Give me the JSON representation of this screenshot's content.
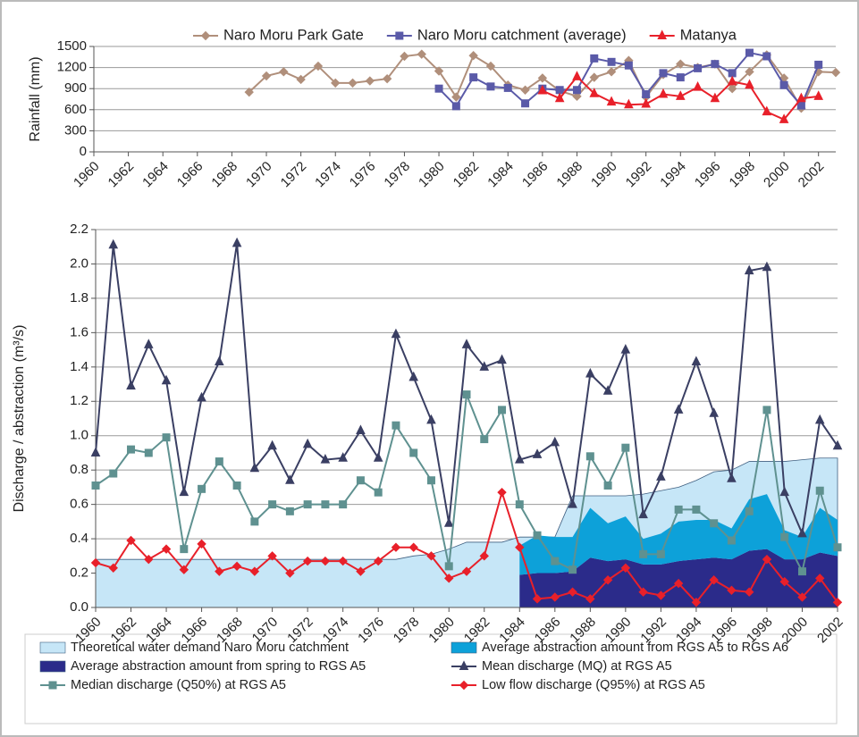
{
  "chart_data": [
    {
      "type": "line",
      "legend": "top",
      "grid": true,
      "y_label": "Rainfall (mm)",
      "x": [
        1969,
        1970,
        1971,
        1972,
        1973,
        1974,
        1975,
        1976,
        1977,
        1978,
        1979,
        1980,
        1981,
        1982,
        1983,
        1984,
        1985,
        1986,
        1987,
        1988,
        1989,
        1990,
        1991,
        1992,
        1993,
        1994,
        1995,
        1996,
        1997,
        1998,
        1999,
        2000,
        2001,
        2002,
        2003
      ],
      "xlim": [
        1960,
        2003
      ],
      "xticks": [
        1960,
        1962,
        1964,
        1966,
        1968,
        1970,
        1972,
        1974,
        1976,
        1978,
        1980,
        1982,
        1984,
        1986,
        1988,
        1990,
        1992,
        1994,
        1996,
        1998,
        2000,
        2002
      ],
      "ylim": [
        0,
        1500
      ],
      "yticks": [
        0,
        300,
        600,
        900,
        1200,
        1500
      ],
      "series": [
        {
          "name": "Naro Moru Park Gate",
          "color": "#b08f7b",
          "marker": "diamond",
          "type": "line",
          "values": [
            850,
            1080,
            1140,
            1030,
            1220,
            980,
            980,
            1010,
            1040,
            1360,
            1390,
            1150,
            780,
            1370,
            1220,
            950,
            880,
            1050,
            870,
            790,
            1060,
            1140,
            1300,
            780,
            1100,
            1250,
            1200,
            1250,
            900,
            1140,
            1380,
            1050,
            620,
            1140,
            1130
          ]
        },
        {
          "name": "Naro Moru catchment (average)",
          "color": "#5a5aa8",
          "marker": "square",
          "type": "line",
          "values": [
            null,
            null,
            null,
            null,
            null,
            null,
            null,
            null,
            null,
            null,
            null,
            900,
            650,
            1060,
            930,
            910,
            690,
            900,
            880,
            880,
            1330,
            1280,
            1230,
            820,
            1120,
            1060,
            1190,
            1250,
            1120,
            1410,
            1360,
            950,
            660,
            1240,
            null
          ]
        },
        {
          "name": "Matanya",
          "color": "#e8202a",
          "marker": "triangle",
          "type": "line",
          "values": [
            null,
            null,
            null,
            null,
            null,
            null,
            null,
            null,
            null,
            null,
            null,
            null,
            null,
            null,
            null,
            null,
            null,
            870,
            760,
            1070,
            830,
            710,
            670,
            680,
            820,
            790,
            920,
            760,
            1000,
            950,
            570,
            460,
            760,
            790,
            null
          ]
        }
      ]
    },
    {
      "type": "line",
      "legend": "bottom",
      "grid": true,
      "y_label": "Discharge / abstraction (m³/s)",
      "x": [
        1960,
        1961,
        1962,
        1963,
        1964,
        1965,
        1966,
        1967,
        1968,
        1969,
        1970,
        1971,
        1972,
        1973,
        1974,
        1975,
        1976,
        1977,
        1978,
        1979,
        1980,
        1981,
        1982,
        1983,
        1984,
        1985,
        1986,
        1987,
        1988,
        1989,
        1990,
        1991,
        1992,
        1993,
        1994,
        1995,
        1996,
        1997,
        1998,
        1999,
        2000,
        2001,
        2002
      ],
      "xlim": [
        1960,
        2002
      ],
      "xticks": [
        1960,
        1962,
        1964,
        1966,
        1968,
        1970,
        1972,
        1974,
        1976,
        1978,
        1980,
        1982,
        1984,
        1986,
        1988,
        1990,
        1992,
        1994,
        1996,
        1998,
        2000,
        2002
      ],
      "ylim": [
        0,
        2.2
      ],
      "yticks": [
        {
          "value": 0,
          "label": "0.0"
        },
        0.2,
        0.4,
        0.6,
        0.8,
        {
          "value": 1,
          "label": "1.0"
        },
        1.2,
        1.4,
        1.6,
        1.8,
        {
          "value": 2,
          "label": "2.0"
        },
        2.2
      ],
      "series": [
        {
          "name": "Theoretical water demand Naro Moru catchment",
          "color": "#c6e6f7",
          "type": "area",
          "values": [
            0.28,
            0.28,
            0.28,
            0.28,
            0.28,
            0.28,
            0.28,
            0.28,
            0.28,
            0.28,
            0.28,
            0.28,
            0.28,
            0.28,
            0.28,
            0.28,
            0.28,
            0.28,
            0.3,
            0.31,
            0.34,
            0.38,
            0.38,
            0.38,
            0.41,
            0.41,
            0.41,
            0.65,
            0.65,
            0.65,
            0.65,
            0.66,
            0.68,
            0.7,
            0.74,
            0.79,
            0.8,
            0.85,
            0.85,
            0.85,
            0.86,
            0.87,
            0.87
          ]
        },
        {
          "name": "Average abstraction amount from RGS A5 to RGS A6",
          "color": "#0da1d9",
          "type": "stacked_area",
          "values": [
            null,
            null,
            null,
            null,
            null,
            null,
            null,
            null,
            null,
            null,
            null,
            null,
            null,
            null,
            null,
            null,
            null,
            null,
            null,
            null,
            null,
            null,
            null,
            null,
            0.17,
            0.22,
            0.21,
            0.2,
            0.29,
            0.22,
            0.25,
            0.15,
            0.18,
            0.23,
            0.23,
            0.22,
            0.18,
            0.3,
            0.32,
            0.17,
            0.13,
            0.26,
            0.21
          ]
        },
        {
          "name": "Average abstraction amount from spring to RGS A5",
          "color": "#2b2b8a",
          "type": "stacked_area",
          "values": [
            null,
            null,
            null,
            null,
            null,
            null,
            null,
            null,
            null,
            null,
            null,
            null,
            null,
            null,
            null,
            null,
            null,
            null,
            null,
            null,
            null,
            null,
            null,
            null,
            0.19,
            0.2,
            0.2,
            0.21,
            0.29,
            0.27,
            0.28,
            0.25,
            0.25,
            0.27,
            0.28,
            0.29,
            0.28,
            0.33,
            0.34,
            0.28,
            0.28,
            0.32,
            0.3
          ]
        },
        {
          "name": "Mean discharge (MQ) at RGS A5",
          "color": "#3a3f63",
          "marker": "triangle",
          "type": "line",
          "values": [
            0.9,
            2.11,
            1.29,
            1.53,
            1.32,
            0.67,
            1.22,
            1.43,
            2.12,
            0.81,
            0.94,
            0.74,
            0.95,
            0.86,
            0.87,
            1.03,
            0.87,
            1.59,
            1.34,
            1.09,
            0.49,
            1.53,
            1.4,
            1.44,
            0.86,
            0.89,
            0.96,
            0.6,
            1.36,
            1.26,
            1.5,
            0.54,
            0.76,
            1.15,
            1.43,
            1.13,
            0.75,
            1.96,
            1.98,
            0.67,
            0.43,
            1.09,
            0.94
          ]
        },
        {
          "name": "Median discharge (Q50%) at RGS A5",
          "color": "#5f9190",
          "marker": "square",
          "type": "line",
          "values": [
            0.71,
            0.78,
            0.92,
            0.9,
            0.99,
            0.34,
            0.69,
            0.85,
            0.71,
            0.5,
            0.6,
            0.56,
            0.6,
            0.6,
            0.6,
            0.74,
            0.67,
            1.06,
            0.9,
            0.74,
            0.24,
            1.24,
            0.98,
            1.15,
            0.6,
            0.42,
            0.27,
            0.22,
            0.88,
            0.71,
            0.93,
            0.31,
            0.31,
            0.57,
            0.57,
            0.49,
            0.39,
            0.56,
            1.15,
            0.41,
            0.21,
            0.68,
            0.35
          ]
        },
        {
          "name": "Low flow discharge (Q95%) at RGS A5",
          "color": "#e8202a",
          "marker": "diamond",
          "type": "line",
          "values": [
            0.26,
            0.23,
            0.39,
            0.28,
            0.34,
            0.22,
            0.37,
            0.21,
            0.24,
            0.21,
            0.3,
            0.2,
            0.27,
            0.27,
            0.27,
            0.21,
            0.27,
            0.35,
            0.35,
            0.3,
            0.17,
            0.21,
            0.3,
            0.67,
            0.35,
            0.05,
            0.06,
            0.09,
            0.05,
            0.16,
            0.23,
            0.09,
            0.07,
            0.14,
            0.03,
            0.16,
            0.1,
            0.09,
            0.28,
            0.15,
            0.06,
            0.17,
            0.03
          ]
        }
      ]
    }
  ]
}
